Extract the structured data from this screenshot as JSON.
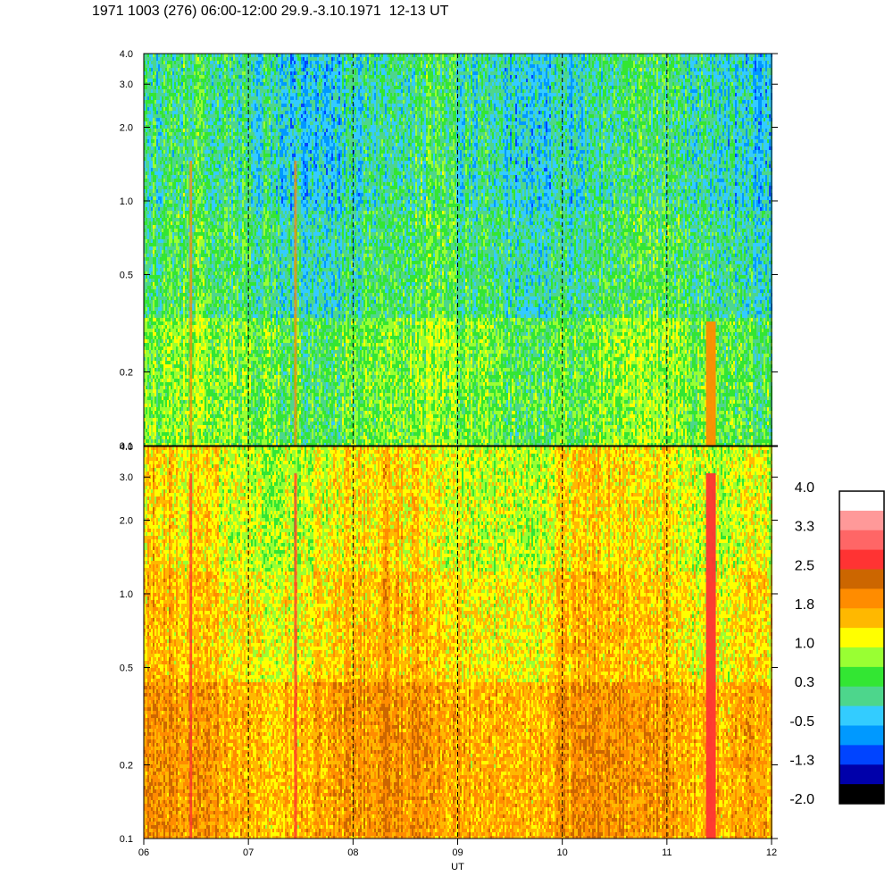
{
  "title": "1971 1003 (276) 06:00-12:00 29.9.-3.10.1971  12-13 UT",
  "chart_data": [
    {
      "type": "heatmap",
      "panel": "top",
      "y_axis_scale": "log",
      "ylim": [
        0.1,
        4.0
      ],
      "y_ticks": [
        "0.1",
        "0.2",
        "0.5",
        "1.0",
        "2.0",
        "3.0",
        "4.0"
      ],
      "y_tick_values": [
        0.1,
        0.2,
        0.5,
        1.0,
        2.0,
        3.0,
        4.0
      ],
      "dominant_levels": [
        "green",
        "cyan",
        "light-blue",
        "yellow-green"
      ],
      "events_ut_hour": [
        6.45,
        7.45,
        11.42
      ]
    },
    {
      "type": "heatmap",
      "panel": "bottom",
      "y_axis_scale": "log",
      "ylim": [
        0.1,
        4.0
      ],
      "y_ticks": [
        "0.1",
        "0.2",
        "0.5",
        "1.0",
        "2.0",
        "3.0",
        "4.0"
      ],
      "y_tick_values": [
        0.1,
        0.2,
        0.5,
        1.0,
        2.0,
        3.0,
        4.0
      ],
      "dominant_levels": [
        "orange",
        "yellow",
        "yellow-green",
        "green"
      ],
      "events_ut_hour": [
        6.45,
        7.45,
        11.42
      ]
    }
  ],
  "x_axis": {
    "label": "UT",
    "ticks": [
      "06",
      "07",
      "08",
      "09",
      "10",
      "11",
      "12"
    ],
    "tick_values": [
      6,
      7,
      8,
      9,
      10,
      11,
      12
    ],
    "xlim": [
      6,
      12
    ],
    "dashed_lines_at": [
      7,
      8,
      9,
      10,
      11
    ]
  },
  "colorbar": {
    "labels": [
      "4.0",
      "3.3",
      "2.5",
      "1.8",
      "1.0",
      "0.3",
      "-0.5",
      "-1.3",
      "-2.0"
    ],
    "colors_top_to_bottom": [
      "#ffffff",
      "#ff9999",
      "#ff6666",
      "#ff3333",
      "#cc6600",
      "#ff8c00",
      "#ffb800",
      "#ffff00",
      "#99ff33",
      "#33e633",
      "#4dd68c",
      "#33ccff",
      "#0099ff",
      "#0044ff",
      "#0000aa",
      "#000000"
    ]
  }
}
